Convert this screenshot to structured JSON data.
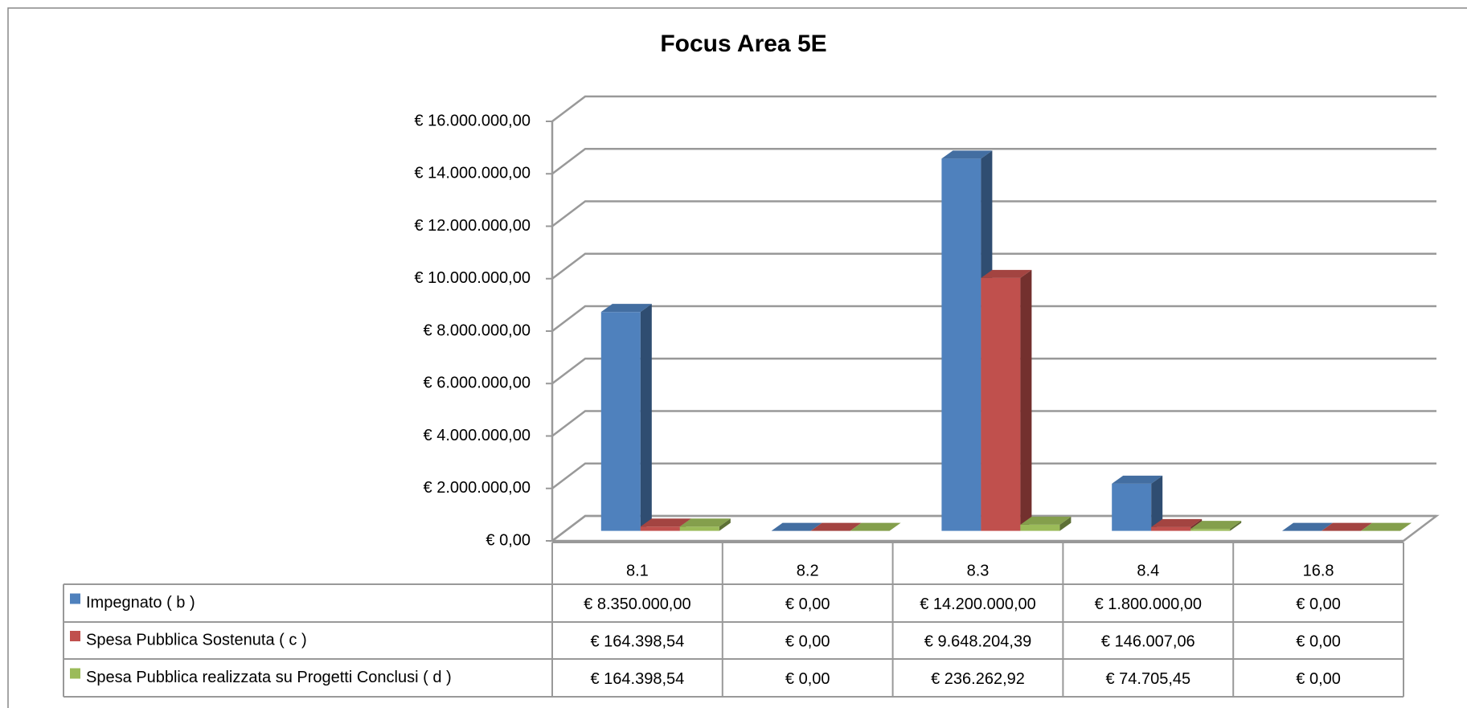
{
  "chart_data": {
    "type": "bar3d",
    "title": "Focus Area 5E",
    "categories": [
      "8.1",
      "8.2",
      "8.3",
      "8.4",
      "16.8"
    ],
    "series": [
      {
        "name": "Impegnato ( b )",
        "color": "#4f81bd",
        "values": [
          8350000,
          0,
          14200000,
          1800000,
          0
        ],
        "value_labels": [
          "€ 8.350.000,00",
          "€ 0,00",
          "€ 14.200.000,00",
          "€ 1.800.000,00",
          "€ 0,00"
        ]
      },
      {
        "name": "Spesa Pubblica Sostenuta  ( c )",
        "color": "#c0504d",
        "values": [
          164398.54,
          0,
          9648204.39,
          146007.06,
          0
        ],
        "value_labels": [
          "€ 164.398,54",
          "€ 0,00",
          "€ 9.648.204,39",
          "€ 146.007,06",
          "€ 0,00"
        ]
      },
      {
        "name": "Spesa Pubblica realizzata su Progetti Conclusi ( d )",
        "color": "#9bbb59",
        "values": [
          164398.54,
          0,
          236262.92,
          74705.45,
          0
        ],
        "value_labels": [
          "€ 164.398,54",
          "€ 0,00",
          "€ 236.262,92",
          "€ 74.705,45",
          "€ 0,00"
        ]
      }
    ],
    "ylim": [
      0,
      16000000
    ],
    "yticks": [
      {
        "value": 0,
        "label": "€ 0,00"
      },
      {
        "value": 2000000,
        "label": "€ 2.000.000,00"
      },
      {
        "value": 4000000,
        "label": "€ 4.000.000,00"
      },
      {
        "value": 6000000,
        "label": "€ 6.000.000,00"
      },
      {
        "value": 8000000,
        "label": "€ 8.000.000,00"
      },
      {
        "value": 10000000,
        "label": "€ 10.000.000,00"
      },
      {
        "value": 12000000,
        "label": "€ 12.000.000,00"
      },
      {
        "value": 14000000,
        "label": "€ 14.000.000,00"
      },
      {
        "value": 16000000,
        "label": "€ 16.000.000,00"
      }
    ],
    "grid": true
  }
}
